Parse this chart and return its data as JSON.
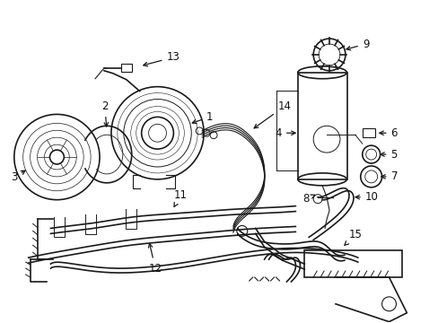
{
  "background_color": "#ffffff",
  "line_color": "#1a1a1a",
  "label_color": "#111111",
  "figsize": [
    4.89,
    3.6
  ],
  "dpi": 100
}
